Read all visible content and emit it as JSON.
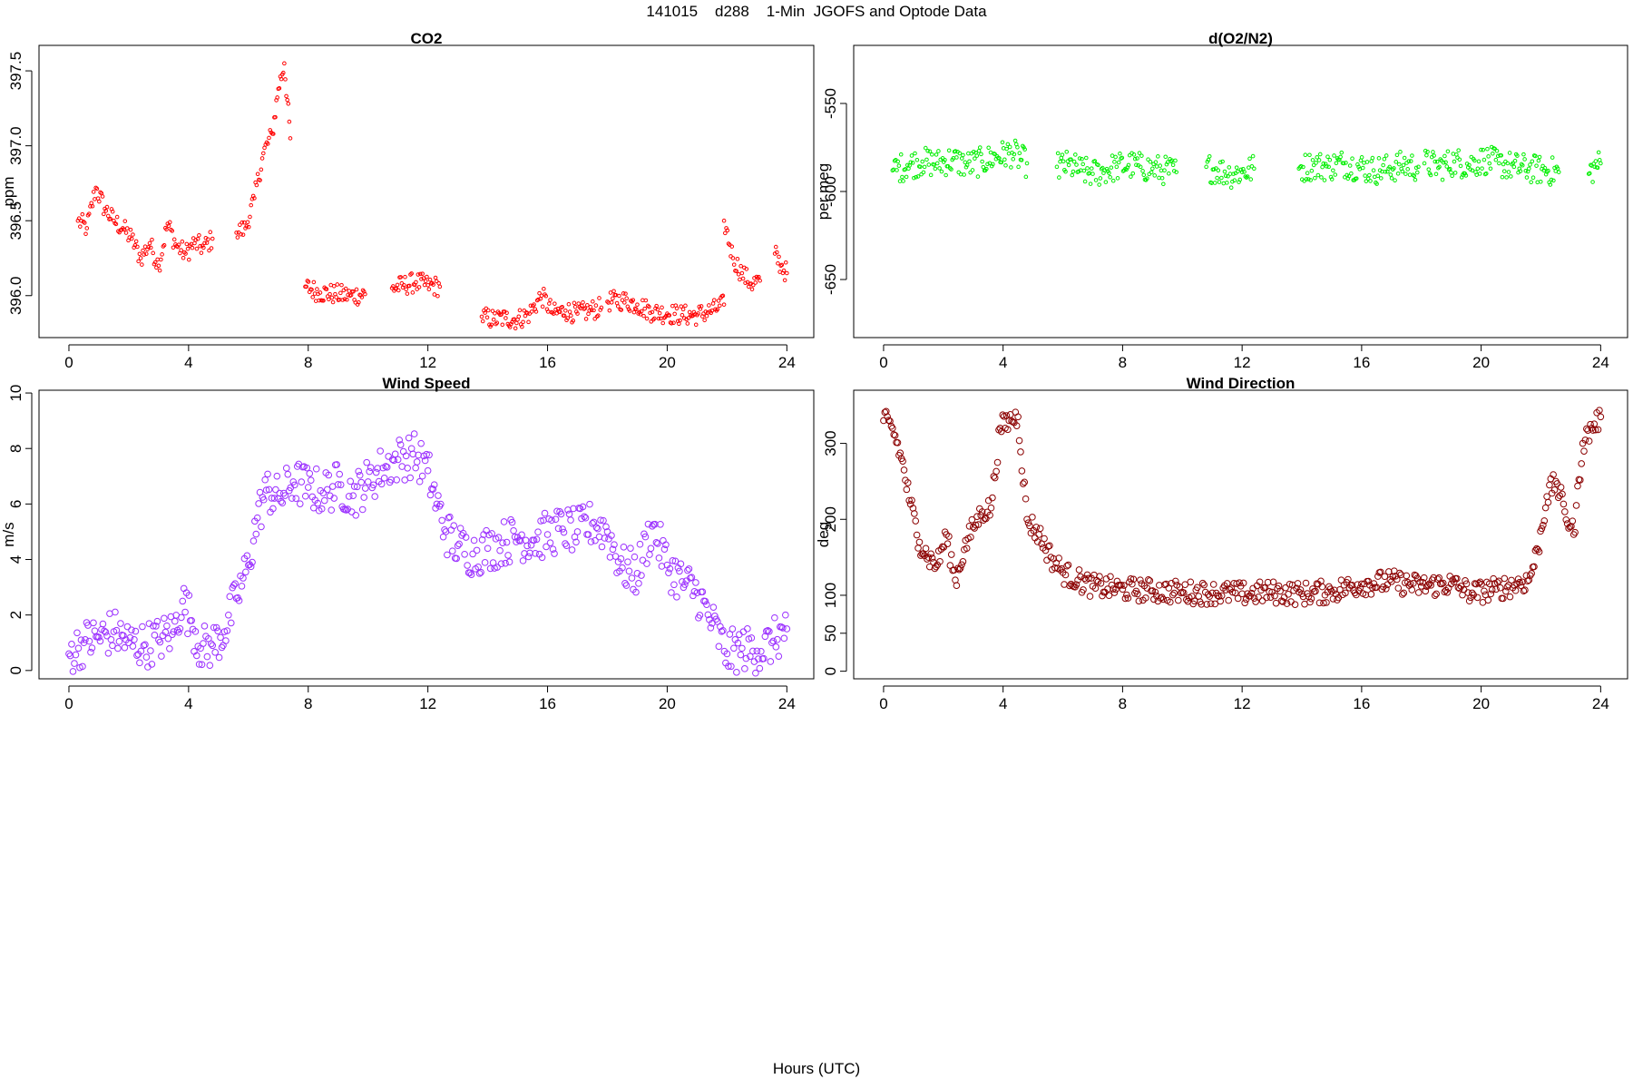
{
  "figure": {
    "title": "141015    d288    1-Min  JGOFS and Optode Data",
    "xlabel": "Hours (UTC)"
  },
  "chart_data": [
    {
      "type": "scatter",
      "title": "CO2",
      "xlabel": "",
      "ylabel": "ppm",
      "xlim": [
        -1,
        24.9
      ],
      "ylim": [
        395.72,
        397.67
      ],
      "xticks": [
        0,
        4,
        8,
        12,
        16,
        20,
        24
      ],
      "yticks": [
        396.0,
        396.5,
        397.0,
        397.5
      ],
      "ytick_labels": [
        "396.0",
        "396.5",
        "397.0",
        "397.5"
      ],
      "color": "#ff0000",
      "marker_radius": 1.8,
      "series": [
        {
          "x": [
            0.3,
            0.6,
            0.9,
            1.2,
            1.5,
            1.8,
            2.1,
            2.4,
            2.7,
            3.0,
            3.3,
            3.6,
            3.9,
            4.2,
            4.5,
            4.8
          ],
          "y": [
            396.5,
            396.45,
            396.72,
            396.58,
            396.5,
            396.45,
            396.38,
            396.25,
            396.35,
            396.2,
            396.48,
            396.33,
            396.28,
            396.35,
            396.32,
            396.38
          ]
        },
        {
          "x": [
            5.6,
            5.9,
            6.2,
            6.5,
            6.8,
            7.0,
            7.2,
            7.4
          ],
          "y": [
            396.42,
            396.45,
            396.65,
            396.95,
            397.08,
            397.38,
            397.55,
            397.05
          ]
        },
        {
          "x": [
            7.9,
            8.4,
            8.9,
            9.4,
            9.9
          ],
          "y": [
            396.06,
            396.02,
            396.01,
            396.0,
            396.01
          ]
        },
        {
          "x": [
            10.8,
            11.2,
            11.6,
            12.0,
            12.4
          ],
          "y": [
            396.05,
            396.07,
            396.09,
            396.07,
            396.06
          ]
        },
        {
          "x": [
            13.8,
            14.2,
            14.6,
            15.0,
            15.4,
            15.8,
            16.2,
            16.6,
            17.0,
            17.4,
            17.8
          ],
          "y": [
            395.86,
            395.84,
            395.85,
            395.84,
            395.88,
            396.0,
            395.88,
            395.9,
            395.88,
            395.9,
            395.92
          ]
        },
        {
          "x": [
            18.0,
            18.5,
            19.0,
            19.5,
            20.0,
            20.5,
            21.0,
            21.5,
            21.9
          ],
          "y": [
            395.96,
            395.97,
            395.94,
            395.89,
            395.88,
            395.87,
            395.87,
            395.9,
            395.94
          ]
        },
        {
          "x": [
            21.9,
            22.2,
            22.5,
            22.8,
            23.1
          ],
          "y": [
            396.5,
            396.25,
            396.15,
            396.08,
            396.1
          ]
        },
        {
          "x": [
            23.6,
            23.8,
            24.0
          ],
          "y": [
            396.28,
            396.2,
            396.15
          ]
        }
      ]
    },
    {
      "type": "scatter",
      "title": "d(O2/N2)",
      "xlabel": "",
      "ylabel": "per meg",
      "xlim": [
        -1,
        24.9
      ],
      "ylim": [
        -683,
        -517
      ],
      "xticks": [
        0,
        4,
        8,
        12,
        16,
        20,
        24
      ],
      "yticks": [
        -550,
        -600,
        -650
      ],
      "ytick_labels": [
        "-550",
        "-600",
        "-650"
      ],
      "color": "#00ee00",
      "marker_radius": 1.8,
      "series": [
        {
          "x": [
            0.3,
            0.8,
            1.3,
            1.8,
            2.3,
            2.8,
            3.3,
            3.8,
            4.3,
            4.8
          ],
          "y": [
            -588,
            -585,
            -583,
            -584,
            -582,
            -585,
            -583,
            -580,
            -578,
            -584
          ]
        },
        {
          "x": [
            5.8,
            6.2,
            6.6,
            7.0,
            7.4,
            7.8,
            8.2,
            8.6,
            9.0,
            9.4,
            9.8
          ],
          "y": [
            -586,
            -585,
            -588,
            -590,
            -588,
            -586,
            -585,
            -586,
            -587,
            -588,
            -589
          ]
        },
        {
          "x": [
            10.8,
            11.2,
            11.6,
            12.0,
            12.4
          ],
          "y": [
            -586,
            -588,
            -590,
            -589,
            -587
          ]
        },
        {
          "x": [
            13.9,
            14.4,
            14.9,
            15.4,
            15.9,
            16.4,
            16.9,
            17.4,
            17.9
          ],
          "y": [
            -587,
            -585,
            -586,
            -584,
            -586,
            -588,
            -587,
            -585,
            -586
          ]
        },
        {
          "x": [
            18.1,
            18.6,
            19.1,
            19.6,
            20.1,
            20.6,
            21.1,
            21.6,
            22.1,
            22.6
          ],
          "y": [
            -584,
            -586,
            -583,
            -585,
            -582,
            -584,
            -586,
            -587,
            -588,
            -589
          ]
        },
        {
          "x": [
            23.6,
            23.8,
            24.0
          ],
          "y": [
            -590,
            -586,
            -584
          ]
        }
      ]
    },
    {
      "type": "scatter",
      "title": "Wind Speed",
      "xlabel": "",
      "ylabel": "m/s",
      "xlim": [
        -1,
        24.9
      ],
      "ylim": [
        -0.3,
        10.1
      ],
      "xticks": [
        0,
        4,
        8,
        12,
        16,
        20,
        24
      ],
      "yticks": [
        0,
        2,
        4,
        6,
        8,
        10
      ],
      "ytick_labels": [
        "0",
        "2",
        "4",
        "6",
        "8",
        "10"
      ],
      "color": "#9b30ff",
      "marker_radius": 3.3,
      "series": [
        {
          "x": [
            0.0,
            0.5,
            1.0,
            1.5,
            2.0,
            2.5,
            3.0,
            3.5,
            3.8,
            4.1,
            4.4,
            4.8,
            5.2,
            5.6,
            6.0,
            6.3,
            6.6,
            7.0,
            7.5,
            8.0,
            8.5,
            9.0,
            9.5,
            10.0,
            10.5,
            11.0,
            11.5,
            12.0,
            12.3,
            12.6,
            13.0,
            13.5,
            14.0,
            14.5,
            15.0,
            15.5,
            16.0,
            16.5,
            17.0,
            17.5,
            18.0,
            18.5,
            19.0,
            19.5,
            20.0,
            20.5,
            21.0,
            21.5,
            22.0,
            22.5,
            23.0,
            23.5,
            24.0
          ],
          "y": [
            0.6,
            1.0,
            1.2,
            1.4,
            1.0,
            0.9,
            1.1,
            1.4,
            2.5,
            1.8,
            0.8,
            0.9,
            1.4,
            2.6,
            3.8,
            5.5,
            6.5,
            6.2,
            6.8,
            6.6,
            6.4,
            6.7,
            6.3,
            6.8,
            7.3,
            7.6,
            7.8,
            7.2,
            6.0,
            5.0,
            4.5,
            4.2,
            4.4,
            4.6,
            4.8,
            4.7,
            4.9,
            5.1,
            5.0,
            5.3,
            5.0,
            3.7,
            3.5,
            5.2,
            3.8,
            3.2,
            2.8,
            1.7,
            0.6,
            0.8,
            0.7,
            1.0,
            1.5
          ]
        }
      ]
    },
    {
      "type": "scatter",
      "title": "Wind Direction",
      "xlabel": "",
      "ylabel": "deg",
      "xlim": [
        -1,
        24.9
      ],
      "ylim": [
        -10,
        370
      ],
      "xticks": [
        0,
        4,
        8,
        12,
        16,
        20,
        24
      ],
      "yticks": [
        0,
        50,
        100,
        200,
        300
      ],
      "ytick_labels": [
        "0",
        "50",
        "100",
        "200",
        "300"
      ],
      "color": "#8b0000",
      "marker_radius": 3.3,
      "series": [
        {
          "x": [
            0.0,
            0.3,
            0.6,
            0.9,
            1.2,
            1.5,
            1.8,
            2.1,
            2.4,
            2.7,
            3.0,
            3.3,
            3.6,
            3.9,
            4.2,
            4.5,
            4.8,
            5.2,
            5.6,
            6.0,
            6.5,
            7.0,
            8.0,
            9.0,
            10.0,
            11.0,
            12.0,
            13.0,
            14.0,
            15.0,
            16.0,
            17.0,
            18.0,
            19.0,
            19.7,
            20.5,
            21.2,
            21.6,
            21.9,
            22.2,
            22.5,
            22.8,
            23.1,
            23.4,
            23.7,
            24.0
          ],
          "y": [
            330,
            320,
            280,
            220,
            170,
            150,
            140,
            180,
            120,
            160,
            190,
            210,
            215,
            320,
            330,
            335,
            200,
            180,
            150,
            130,
            120,
            112,
            108,
            106,
            104,
            103,
            102,
            104,
            102,
            105,
            115,
            118,
            112,
            115,
            103,
            108,
            115,
            120,
            160,
            230,
            250,
            210,
            180,
            300,
            320,
            335
          ]
        }
      ]
    }
  ]
}
